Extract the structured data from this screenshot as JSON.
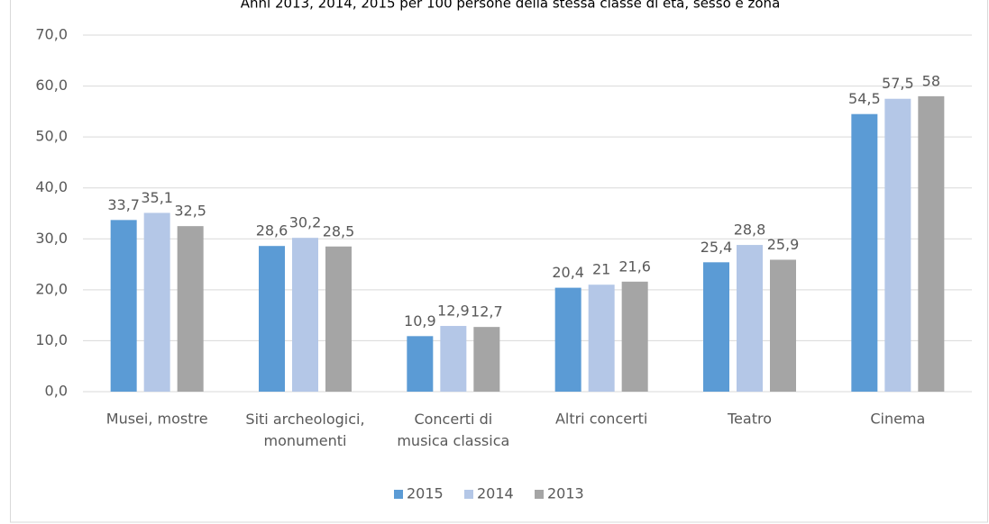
{
  "chart_data": {
    "type": "bar",
    "subtitle": "Anni 2013, 2014, 2015 per 100 persone della stessa classe di età, sesso e zona",
    "categories": [
      "Musei, mostre",
      "Siti archeologici,\nmonumenti",
      "Concerti di\nmusica classica",
      "Altri concerti",
      "Teatro",
      "Cinema"
    ],
    "series": [
      {
        "name": "2015",
        "color": "#5b9bd5",
        "values": [
          33.7,
          28.6,
          10.9,
          20.4,
          25.4,
          54.5
        ],
        "value_labels": [
          "33,7",
          "28,6",
          "10,9",
          "20,4",
          "25,4",
          "54,5"
        ]
      },
      {
        "name": "2014",
        "color": "#b4c7e7",
        "values": [
          35.1,
          30.2,
          12.9,
          21,
          28.8,
          57.5
        ],
        "value_labels": [
          "35,1",
          "30,2",
          "12,9",
          "21",
          "28,8",
          "57,5"
        ]
      },
      {
        "name": "2013",
        "color": "#a5a5a5",
        "values": [
          32.5,
          28.5,
          12.7,
          21.6,
          25.9,
          58
        ],
        "value_labels": [
          "32,5",
          "28,5",
          "12,7",
          "21,6",
          "25,9",
          "58"
        ]
      }
    ],
    "ylim": [
      0,
      70
    ],
    "yticks": [
      {
        "value": 0,
        "label": "0,0"
      },
      {
        "value": 10,
        "label": "10,0"
      },
      {
        "value": 20,
        "label": "20,0"
      },
      {
        "value": 30,
        "label": "30,0"
      },
      {
        "value": 40,
        "label": "40,0"
      },
      {
        "value": 50,
        "label": "50,0"
      },
      {
        "value": 60,
        "label": "60,0"
      },
      {
        "value": 70,
        "label": "70,0"
      }
    ],
    "grid": true,
    "legend": "bottom"
  }
}
